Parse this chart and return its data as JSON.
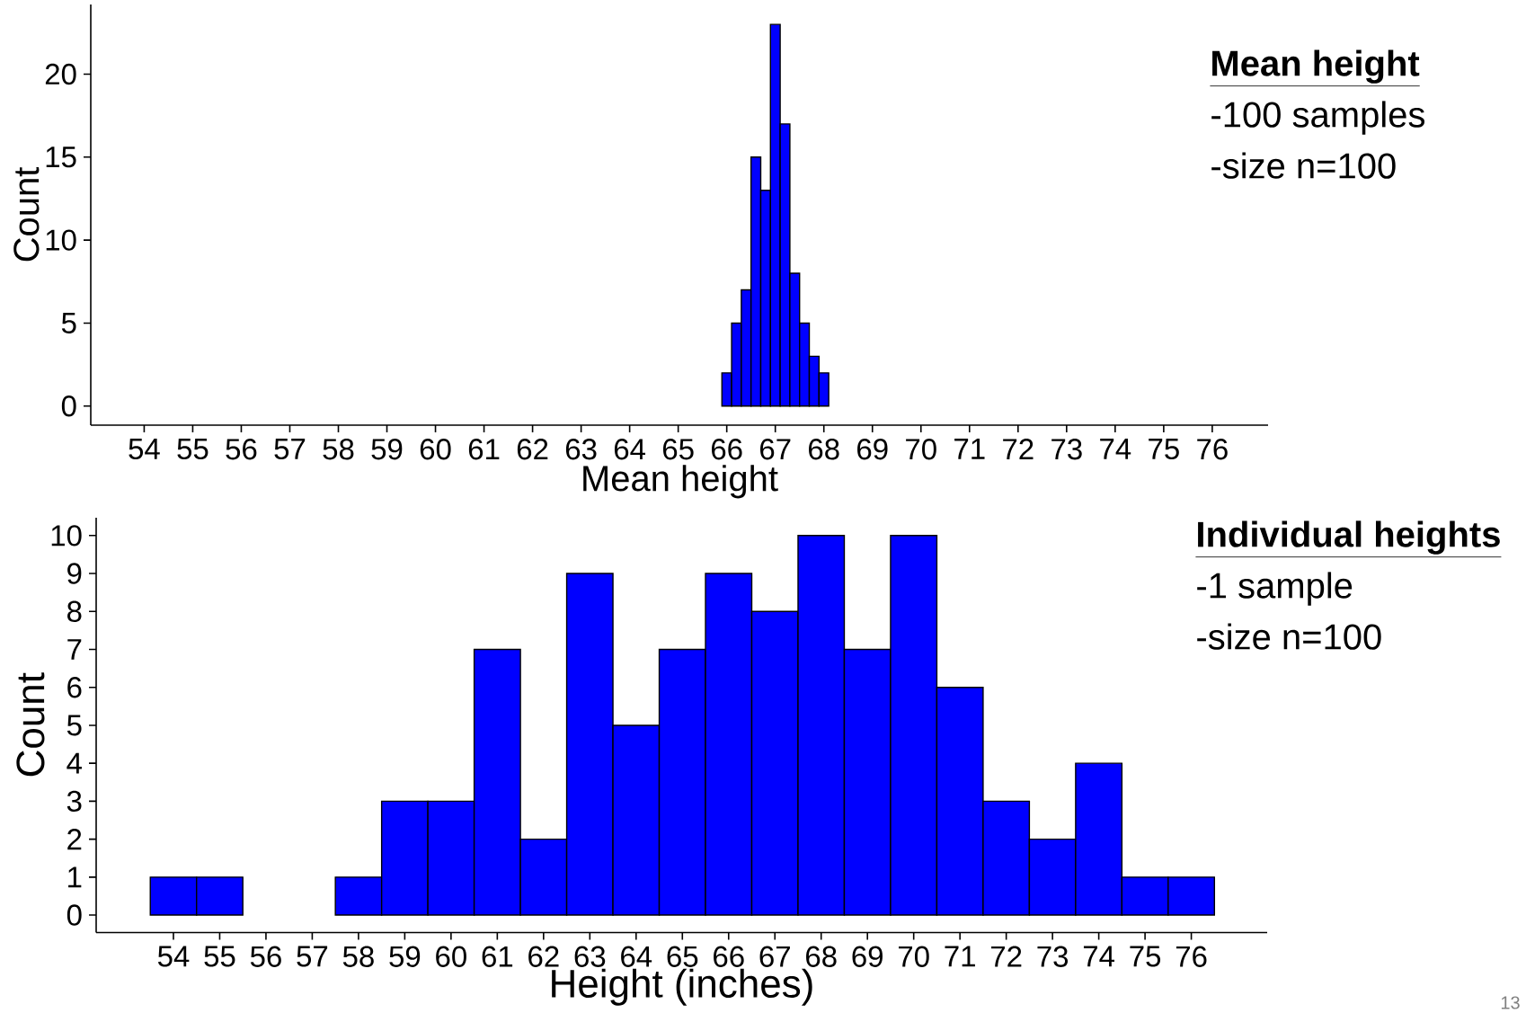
{
  "chart_data": [
    {
      "type": "histogram",
      "xlabel": "Mean height",
      "ylabel": "Count",
      "color": "#0000ff",
      "bins": [
        54.1,
        54.3,
        54.5,
        54.7,
        54.9,
        55.1,
        55.3,
        55.5,
        55.7,
        55.9,
        56.1,
        56.3,
        56.5,
        56.7,
        56.9,
        57.1,
        57.3,
        57.5,
        57.7,
        57.9,
        58.1,
        58.3,
        58.5,
        58.7,
        58.9,
        59.1,
        59.3,
        59.5,
        59.7,
        59.9,
        60.1,
        60.3,
        60.5,
        60.7,
        60.9,
        61.1,
        61.3,
        61.5,
        61.7,
        61.9,
        62.1,
        62.3,
        62.5,
        62.7,
        62.9,
        63.1,
        63.3,
        63.5,
        63.7,
        63.9,
        64.1,
        64.3,
        64.5,
        64.7,
        64.9,
        65.1,
        65.3,
        65.5,
        65.7,
        65.9,
        66.1,
        66.3,
        66.5,
        66.7,
        66.9,
        67.1,
        67.3,
        67.5,
        67.7,
        67.9,
        68.1,
        68.3,
        68.5,
        68.7,
        68.9,
        69.1,
        69.3,
        69.5,
        69.7,
        69.9,
        70.1,
        70.3,
        70.5,
        70.7,
        70.9,
        71.1,
        71.3,
        71.5,
        71.7,
        71.9,
        72.1,
        72.3,
        72.5,
        72.7,
        72.9,
        73.1,
        73.3,
        73.5,
        73.7,
        73.9,
        74.1,
        74.3,
        74.5,
        74.7,
        74.9,
        75.1,
        75.3,
        75.5,
        75.7,
        75.9
      ],
      "values": [
        0,
        0,
        0,
        0,
        0,
        0,
        0,
        0,
        0,
        0,
        0,
        0,
        0,
        0,
        0,
        0,
        0,
        0,
        0,
        0,
        0,
        0,
        0,
        0,
        0,
        0,
        0,
        0,
        0,
        0,
        0,
        0,
        0,
        0,
        0,
        0,
        0,
        0,
        0,
        0,
        0,
        0,
        0,
        0,
        0,
        0,
        0,
        0,
        0,
        0,
        0,
        0,
        0,
        0,
        0,
        0,
        0,
        0,
        0,
        2,
        5,
        7,
        15,
        13,
        23,
        17,
        8,
        5,
        3,
        2,
        0,
        0,
        0,
        0,
        0,
        0,
        0,
        0,
        0,
        0,
        0,
        0,
        0,
        0,
        0,
        0,
        0,
        0,
        0,
        0,
        0,
        0,
        0,
        0,
        0,
        0,
        0,
        0,
        0,
        0,
        0,
        0,
        0,
        0,
        0,
        0,
        0,
        0,
        0
      ],
      "xlim": [
        52.9,
        77.15
      ],
      "ylim": [
        -1.15,
        24.2
      ],
      "xticks": [
        54,
        55,
        56,
        57,
        58,
        59,
        60,
        61,
        62,
        63,
        64,
        65,
        66,
        67,
        68,
        69,
        70,
        71,
        72,
        73,
        74,
        75,
        76
      ],
      "yticks": [
        0,
        5,
        10,
        15,
        20
      ],
      "annotations": [
        "Mean height",
        "-100 samples",
        "-size n=100"
      ]
    },
    {
      "type": "histogram",
      "xlabel": "Height (inches)",
      "ylabel": "Count",
      "color": "#0000ff",
      "bins": [
        53.5,
        54.5,
        55.5,
        56.5,
        57.5,
        58.5,
        59.5,
        60.5,
        61.5,
        62.5,
        63.5,
        64.5,
        65.5,
        66.5,
        67.5,
        68.5,
        69.5,
        70.5,
        71.5,
        72.5,
        73.5,
        74.5,
        75.5,
        76.5
      ],
      "values": [
        1,
        1,
        0,
        0,
        1,
        3,
        3,
        7,
        2,
        9,
        5,
        7,
        9,
        8,
        10,
        7,
        10,
        6,
        3,
        2,
        4,
        1,
        1
      ],
      "xlim": [
        52.33,
        77.64
      ],
      "ylim": [
        -0.46,
        10.47
      ],
      "xticks": [
        54,
        55,
        56,
        57,
        58,
        59,
        60,
        61,
        62,
        63,
        64,
        65,
        66,
        67,
        68,
        69,
        70,
        71,
        72,
        73,
        74,
        75,
        76
      ],
      "yticks": [
        0,
        1,
        2,
        3,
        4,
        5,
        6,
        7,
        8,
        9,
        10
      ],
      "annotations": [
        "Individual heights",
        "-1 sample",
        "-size n=100",
        "13"
      ]
    }
  ]
}
